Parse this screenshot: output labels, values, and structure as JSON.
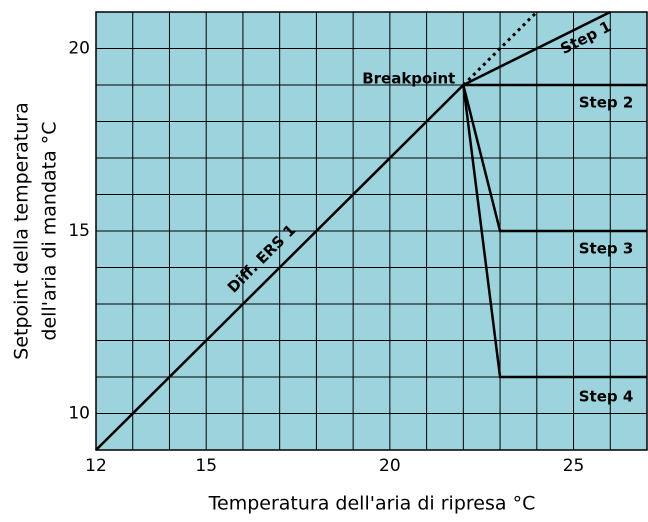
{
  "chart_data": {
    "type": "line",
    "xlabel": "Temperatura dell'aria di ripresa °C",
    "ylabel": [
      "Setpoint della temperatura",
      "dell'aria di mandata  °C"
    ],
    "xlim": [
      12,
      27
    ],
    "ylim": [
      9,
      21
    ],
    "xticks": [
      12,
      15,
      20,
      25
    ],
    "yticks": [
      10,
      15,
      20
    ],
    "xgrid": [
      13,
      14,
      15,
      16,
      17,
      18,
      19,
      20,
      21,
      22,
      23,
      24,
      25,
      26
    ],
    "ygrid": [
      10,
      11,
      12,
      13,
      14,
      15,
      16,
      17,
      18,
      19,
      20
    ],
    "grid": true,
    "background": "#9dd3dc",
    "color": "#000000",
    "annotations": [
      {
        "text": "Breakpoint",
        "x": 22,
        "y": 19
      }
    ],
    "series": [
      {
        "name": "Diff. ERS 1",
        "x": [
          12,
          22
        ],
        "values": [
          9,
          19
        ]
      },
      {
        "style": "dotted",
        "x": [
          22,
          24
        ],
        "values": [
          19,
          21
        ]
      },
      {
        "name": "Step 1",
        "x": [
          22,
          26
        ],
        "values": [
          19,
          21
        ]
      },
      {
        "name": "Step 2",
        "x": [
          22,
          27
        ],
        "values": [
          19,
          19
        ]
      },
      {
        "name": "Step 3",
        "x": [
          22,
          23,
          27
        ],
        "values": [
          19,
          15,
          15
        ]
      },
      {
        "name": "Step 4",
        "x": [
          22,
          23,
          27
        ],
        "values": [
          19,
          11,
          11
        ]
      }
    ]
  }
}
